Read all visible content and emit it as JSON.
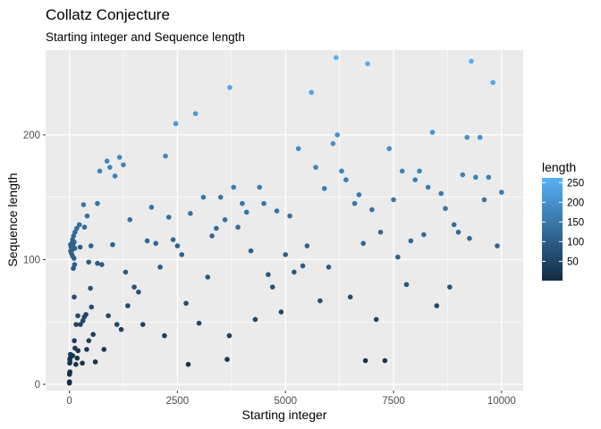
{
  "chart_data": {
    "type": "scatter",
    "title": "Collatz Conjecture",
    "subtitle": "Starting integer and Sequence length",
    "xlabel": "Starting integer",
    "ylabel": "Sequence length",
    "xlim": [
      -550,
      10500
    ],
    "ylim": [
      -5,
      268
    ],
    "x_ticks": [
      0,
      2500,
      5000,
      7500,
      10000
    ],
    "x_tick_labels": [
      "0",
      "2500",
      "5000",
      "7500",
      "10000"
    ],
    "y_ticks": [
      0,
      100,
      200
    ],
    "y_tick_labels": [
      "0",
      "100",
      "200"
    ],
    "grid": true,
    "panel_background": "#EBEBEB",
    "legend": {
      "title": "length",
      "position": "right",
      "ticks": [
        50,
        100,
        150,
        200,
        250
      ],
      "tick_labels": [
        "50",
        "100",
        "150",
        "200",
        "250"
      ],
      "range": [
        1,
        262
      ],
      "color_low": "#132B43",
      "color_high": "#56B1F7"
    },
    "series": [
      {
        "x": [
          1,
          2,
          3,
          6,
          7,
          9,
          12,
          15,
          18,
          25,
          27,
          31,
          41,
          47,
          54,
          55,
          63,
          71,
          73,
          77,
          82,
          83,
          91,
          97,
          107,
          108,
          109,
          110,
          111,
          115,
          121,
          124,
          129,
          130,
          150,
          155,
          171,
          180,
          195,
          200,
          231,
          250,
          255,
          300,
          313,
          327,
          345,
          350,
          383,
          400,
          411,
          447,
          450,
          487,
          500,
          511,
          550,
          600,
          649,
          650,
          703,
          750,
          800,
          871,
          900,
          937,
          1000,
          1055,
          1100,
          1161,
          1200,
          1249,
          1300,
          1351,
          1400,
          1500,
          1600,
          1700,
          1800,
          1900,
          2000,
          2100,
          2200,
          2223,
          2300,
          2400,
          2463,
          2500,
          2600,
          2700,
          2750,
          2800,
          2919,
          3000,
          3100,
          3200,
          3300,
          3400,
          3500,
          3600,
          3650,
          3700,
          3711,
          3800,
          3900,
          4000,
          4100,
          4200,
          4300,
          4400,
          4500,
          4600,
          4700,
          4800,
          4900,
          5000,
          5100,
          5200,
          5300,
          5400,
          5500,
          5600,
          5700,
          5800,
          5900,
          6000,
          6100,
          6171,
          6200,
          6300,
          6400,
          6500,
          6600,
          6700,
          6800,
          6850,
          6900,
          7000,
          7100,
          7200,
          7300,
          7400,
          7500,
          7600,
          7700,
          7800,
          7900,
          8000,
          8100,
          8200,
          8300,
          8400,
          8500,
          8600,
          8700,
          8800,
          8900,
          9000,
          9100,
          9200,
          9257,
          9300,
          9400,
          9500,
          9600,
          9700,
          9800,
          9900,
          10000
        ],
        "y": [
          1,
          2,
          8,
          9,
          17,
          20,
          10,
          18,
          21,
          24,
          112,
          107,
          110,
          105,
          113,
          113,
          108,
          103,
          116,
          23,
          111,
          111,
          93,
          119,
          101,
          114,
          114,
          114,
          70,
          35,
          96,
          109,
          122,
          29,
          16,
          48,
          125,
          21,
          55,
          27,
          128,
          110,
          48,
          17,
          51,
          144,
          54,
          126,
          56,
          28,
          135,
          98,
          35,
          77,
          111,
          62,
          40,
          18,
          145,
          97,
          171,
          96,
          28,
          179,
          55,
          174,
          112,
          167,
          48,
          182,
          44,
          176,
          90,
          63,
          132,
          78,
          74,
          48,
          115,
          142,
          113,
          94,
          39,
          183,
          134,
          116,
          209,
          111,
          104,
          65,
          16,
          137,
          217,
          49,
          150,
          86,
          119,
          125,
          150,
          132,
          20,
          39,
          238,
          158,
          126,
          145,
          138,
          107,
          52,
          158,
          145,
          88,
          78,
          139,
          58,
          104,
          135,
          90,
          189,
          95,
          111,
          234,
          174,
          67,
          157,
          94,
          193,
          262,
          200,
          171,
          164,
          70,
          145,
          152,
          113,
          19,
          257,
          140,
          52,
          122,
          19,
          189,
          148,
          102,
          171,
          80,
          115,
          164,
          171,
          120,
          158,
          202,
          63,
          153,
          141,
          78,
          128,
          122,
          168,
          198,
          117,
          259,
          166,
          198,
          148,
          166,
          242,
          111,
          154
        ]
      }
    ]
  }
}
